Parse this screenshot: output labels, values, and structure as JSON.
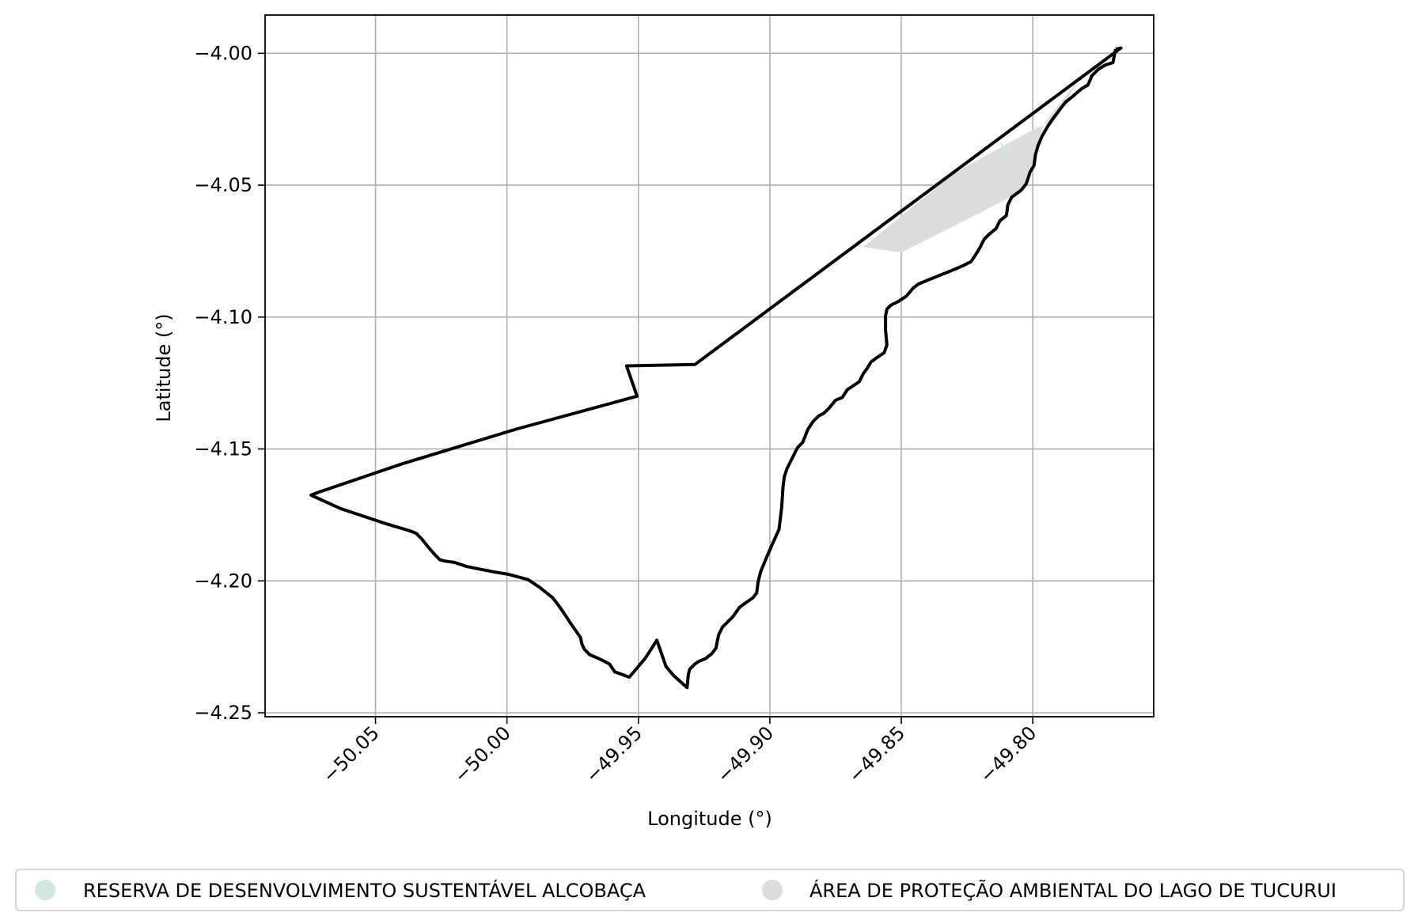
{
  "chart_data": {
    "type": "map",
    "xlabel": "Longitude (°)",
    "ylabel": "Latitude (°)",
    "xlim": [
      -50.092,
      -49.754
    ],
    "ylim": [
      -4.2515,
      -3.9855
    ],
    "x_ticks": [
      -50.05,
      -50.0,
      -49.95,
      -49.9,
      -49.85,
      -49.8
    ],
    "x_tick_labels": [
      "−50.05",
      "−50.00",
      "−49.95",
      "−49.90",
      "−49.85",
      "−49.80"
    ],
    "y_ticks": [
      -4.0,
      -4.05,
      -4.1,
      -4.15,
      -4.2,
      -4.25
    ],
    "y_tick_labels": [
      "−4.00",
      "−4.05",
      "−4.10",
      "−4.15",
      "−4.20",
      "−4.25"
    ],
    "grid": true,
    "legend_placement": "bottom (below the axes)",
    "series": [
      {
        "name": "RESERVA DE DESENVOLVIMENTO SUSTENTÁVEL ALCOBAÇA",
        "color": "#cfe9dc",
        "type": "polygon",
        "points": [
          [
            -49.8125,
            -4.0335
          ],
          [
            -49.8085,
            -4.0375
          ],
          [
            -49.8087,
            -4.0395
          ],
          [
            -49.8115,
            -4.0365
          ]
        ]
      },
      {
        "name": "ÁREA DE PROTEÇÃO AMBIENTAL DO LAGO DE TUCURUI",
        "color": "#dcdcdc",
        "type": "polygon",
        "points": [
          [
            -49.8645,
            -4.0735
          ],
          [
            -49.85,
            -4.0755
          ],
          [
            -49.826,
            -4.0635
          ],
          [
            -49.8045,
            -4.0525
          ],
          [
            -49.8005,
            -4.0445
          ],
          [
            -49.7985,
            -4.035
          ],
          [
            -49.7955,
            -4.0265
          ],
          [
            -49.787,
            -4.0155
          ],
          [
            -49.7835,
            -4.0115
          ],
          [
            -49.7915,
            -4.0255
          ],
          [
            -49.8,
            -4.029
          ],
          [
            -49.83,
            -4.0455
          ],
          [
            -49.8645,
            -4.0735
          ]
        ]
      },
      {
        "name": "outline",
        "color": "#000000",
        "type": "outline",
        "points": [
          [
            -49.7685,
            -3.9985
          ],
          [
            -49.7695,
            -4.0035
          ],
          [
            -49.7725,
            -4.0045
          ],
          [
            -49.775,
            -4.006
          ],
          [
            -49.7775,
            -4.0085
          ],
          [
            -49.779,
            -4.012
          ],
          [
            -49.7815,
            -4.0135
          ],
          [
            -49.785,
            -4.0165
          ],
          [
            -49.7875,
            -4.0185
          ],
          [
            -49.7895,
            -4.021
          ],
          [
            -49.7925,
            -4.025
          ],
          [
            -49.7945,
            -4.028
          ],
          [
            -49.7965,
            -4.0315
          ],
          [
            -49.798,
            -4.035
          ],
          [
            -49.799,
            -4.0385
          ],
          [
            -49.7995,
            -4.0425
          ],
          [
            -49.801,
            -4.045
          ],
          [
            -49.8025,
            -4.0495
          ],
          [
            -49.8045,
            -4.052
          ],
          [
            -49.808,
            -4.0545
          ],
          [
            -49.8095,
            -4.0575
          ],
          [
            -49.81,
            -4.0615
          ],
          [
            -49.8125,
            -4.0635
          ],
          [
            -49.814,
            -4.0665
          ],
          [
            -49.8165,
            -4.0685
          ],
          [
            -49.8185,
            -4.0705
          ],
          [
            -49.82,
            -4.0735
          ],
          [
            -49.8215,
            -4.076
          ],
          [
            -49.8235,
            -4.079
          ],
          [
            -49.8265,
            -4.0805
          ],
          [
            -49.83,
            -4.082
          ],
          [
            -49.835,
            -4.084
          ],
          [
            -49.84,
            -4.086
          ],
          [
            -49.8435,
            -4.0875
          ],
          [
            -49.8455,
            -4.089
          ],
          [
            -49.848,
            -4.092
          ],
          [
            -49.851,
            -4.094
          ],
          [
            -49.854,
            -4.0955
          ],
          [
            -49.8555,
            -4.097
          ],
          [
            -49.856,
            -4.0995
          ],
          [
            -49.856,
            -4.105
          ],
          [
            -49.8555,
            -4.1105
          ],
          [
            -49.8565,
            -4.1135
          ],
          [
            -49.8595,
            -4.1155
          ],
          [
            -49.8615,
            -4.117
          ],
          [
            -49.863,
            -4.1195
          ],
          [
            -49.8645,
            -4.1215
          ],
          [
            -49.866,
            -4.1245
          ],
          [
            -49.869,
            -4.1265
          ],
          [
            -49.8705,
            -4.1275
          ],
          [
            -49.8725,
            -4.1305
          ],
          [
            -49.875,
            -4.1315
          ],
          [
            -49.8775,
            -4.1345
          ],
          [
            -49.8795,
            -4.1365
          ],
          [
            -49.8815,
            -4.1375
          ],
          [
            -49.8835,
            -4.1395
          ],
          [
            -49.8855,
            -4.1425
          ],
          [
            -49.8875,
            -4.1475
          ],
          [
            -49.8895,
            -4.1495
          ],
          [
            -49.8905,
            -4.1515
          ],
          [
            -49.892,
            -4.1545
          ],
          [
            -49.8935,
            -4.1575
          ],
          [
            -49.8945,
            -4.1605
          ],
          [
            -49.895,
            -4.1645
          ],
          [
            -49.8955,
            -4.172
          ],
          [
            -49.8965,
            -4.1805
          ],
          [
            -49.899,
            -4.186
          ],
          [
            -49.901,
            -4.1905
          ],
          [
            -49.9035,
            -4.1965
          ],
          [
            -49.9045,
            -4.2005
          ],
          [
            -49.905,
            -4.2045
          ],
          [
            -49.9065,
            -4.2065
          ],
          [
            -49.9095,
            -4.2085
          ],
          [
            -49.9115,
            -4.21
          ],
          [
            -49.914,
            -4.2135
          ],
          [
            -49.918,
            -4.2175
          ],
          [
            -49.9195,
            -4.2205
          ],
          [
            -49.9205,
            -4.2255
          ],
          [
            -49.922,
            -4.2275
          ],
          [
            -49.9245,
            -4.2295
          ],
          [
            -49.927,
            -4.2305
          ],
          [
            -49.9285,
            -4.2315
          ],
          [
            -49.9305,
            -4.2335
          ],
          [
            -49.931,
            -4.2355
          ],
          [
            -49.9315,
            -4.2405
          ],
          [
            -49.9365,
            -4.236
          ],
          [
            -49.9395,
            -4.2325
          ],
          [
            -49.943,
            -4.2225
          ],
          [
            -49.9475,
            -4.2295
          ],
          [
            -49.9535,
            -4.2365
          ],
          [
            -49.9575,
            -4.235
          ],
          [
            -49.959,
            -4.2345
          ],
          [
            -49.961,
            -4.2315
          ],
          [
            -49.965,
            -4.2295
          ],
          [
            -49.9685,
            -4.228
          ],
          [
            -49.9705,
            -4.226
          ],
          [
            -49.9715,
            -4.224
          ],
          [
            -49.972,
            -4.2215
          ],
          [
            -49.9755,
            -4.2165
          ],
          [
            -49.9795,
            -4.2105
          ],
          [
            -49.9825,
            -4.2065
          ],
          [
            -49.9875,
            -4.2025
          ],
          [
            -49.992,
            -4.1995
          ],
          [
            -49.9995,
            -4.1975
          ],
          [
            -50.0055,
            -4.1965
          ],
          [
            -50.0105,
            -4.1955
          ],
          [
            -50.0155,
            -4.1945
          ],
          [
            -50.02,
            -4.193
          ],
          [
            -50.0235,
            -4.1925
          ],
          [
            -50.0255,
            -4.192
          ],
          [
            -50.0275,
            -4.19
          ],
          [
            -50.0305,
            -4.1865
          ],
          [
            -50.0325,
            -4.184
          ],
          [
            -50.0345,
            -4.182
          ],
          [
            -50.037,
            -4.181
          ],
          [
            -50.0455,
            -4.1785
          ],
          [
            -50.0545,
            -4.1755
          ],
          [
            -50.0635,
            -4.1725
          ],
          [
            -50.0745,
            -4.1675
          ],
          [
            -50.072,
            -4.1665
          ],
          [
            -50.0395,
            -4.1555
          ],
          [
            -49.9965,
            -4.1425
          ],
          [
            -49.9505,
            -4.13
          ],
          [
            -49.9545,
            -4.1185
          ],
          [
            -49.9285,
            -4.118
          ],
          [
            -49.7665,
            -3.998
          ],
          [
            -49.7685,
            -3.9985
          ]
        ]
      }
    ]
  }
}
